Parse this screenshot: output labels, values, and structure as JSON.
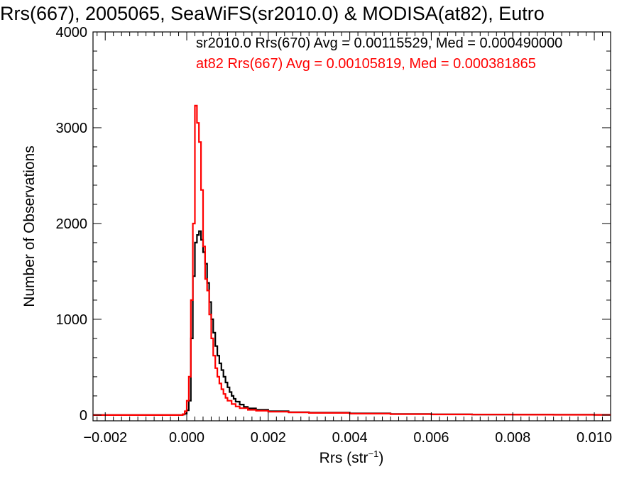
{
  "chart_data": {
    "type": "line",
    "title": "Rrs(667), 2005065, SeaWiFS(sr2010.0) & MODISA(at82), Eutro",
    "xlabel_main": "Rrs (str",
    "xlabel_sup": "−1",
    "xlabel_close": ")",
    "ylabel": "Number of Observations",
    "xlim": [
      -0.0023,
      0.0104
    ],
    "ylim": [
      -60,
      4000
    ],
    "xticks": [
      -0.002,
      0.0,
      0.002,
      0.004,
      0.006,
      0.008,
      0.01
    ],
    "xtick_labels": [
      "−0.002",
      "0.000",
      "0.002",
      "0.004",
      "0.006",
      "0.008",
      "0.010"
    ],
    "yticks": [
      0,
      1000,
      2000,
      3000,
      4000
    ],
    "ytick_labels": [
      "0",
      "1000",
      "2000",
      "3000",
      "4000"
    ],
    "grid": false,
    "series": [
      {
        "name": "sr2010.0 Rrs(670) Avg = 0.00115529, Med = 0.000490000",
        "color": "#000000",
        "points": [
          [
            -0.0023,
            0
          ],
          [
            -0.0002,
            0
          ],
          [
            -0.0001,
            5
          ],
          [
            -5e-05,
            15
          ],
          [
            0.0,
            50
          ],
          [
            5e-05,
            150
          ],
          [
            0.0001,
            800
          ],
          [
            0.00015,
            1450
          ],
          [
            0.0002,
            1800
          ],
          [
            0.00025,
            1880
          ],
          [
            0.0003,
            1920
          ],
          [
            0.00035,
            1830
          ],
          [
            0.0004,
            1700
          ],
          [
            0.00045,
            1580
          ],
          [
            0.0005,
            1380
          ],
          [
            0.00055,
            1180
          ],
          [
            0.0006,
            1000
          ],
          [
            0.00065,
            860
          ],
          [
            0.0007,
            720
          ],
          [
            0.00075,
            620
          ],
          [
            0.0008,
            540
          ],
          [
            0.00085,
            470
          ],
          [
            0.0009,
            400
          ],
          [
            0.00095,
            340
          ],
          [
            0.001,
            290
          ],
          [
            0.00105,
            240
          ],
          [
            0.0011,
            200
          ],
          [
            0.00115,
            170
          ],
          [
            0.0012,
            140
          ],
          [
            0.0013,
            110
          ],
          [
            0.0014,
            85
          ],
          [
            0.0015,
            70
          ],
          [
            0.0017,
            55
          ],
          [
            0.002,
            40
          ],
          [
            0.0025,
            30
          ],
          [
            0.003,
            25
          ],
          [
            0.004,
            18
          ],
          [
            0.005,
            12
          ],
          [
            0.006,
            8
          ],
          [
            0.007,
            6
          ],
          [
            0.008,
            5
          ],
          [
            0.009,
            4
          ],
          [
            0.01,
            3
          ],
          [
            0.0104,
            3
          ]
        ]
      },
      {
        "name": "at82 Rrs(667) Avg = 0.00105819, Med = 0.000381865",
        "color": "#ff0000",
        "points": [
          [
            -0.0023,
            0
          ],
          [
            -0.0002,
            0
          ],
          [
            -0.0001,
            10
          ],
          [
            -5e-05,
            40
          ],
          [
            0.0,
            150
          ],
          [
            5e-05,
            400
          ],
          [
            0.0001,
            1200
          ],
          [
            0.00015,
            2000
          ],
          [
            0.0002,
            3230
          ],
          [
            0.00025,
            3050
          ],
          [
            0.0003,
            2850
          ],
          [
            0.00035,
            2350
          ],
          [
            0.0004,
            1760
          ],
          [
            0.00045,
            1420
          ],
          [
            0.0005,
            1300
          ],
          [
            0.00055,
            1050
          ],
          [
            0.0006,
            800
          ],
          [
            0.00065,
            620
          ],
          [
            0.0007,
            490
          ],
          [
            0.00075,
            400
          ],
          [
            0.0008,
            330
          ],
          [
            0.00085,
            270
          ],
          [
            0.0009,
            220
          ],
          [
            0.00095,
            180
          ],
          [
            0.001,
            150
          ],
          [
            0.0011,
            115
          ],
          [
            0.0012,
            90
          ],
          [
            0.0013,
            72
          ],
          [
            0.0015,
            55
          ],
          [
            0.0017,
            45
          ],
          [
            0.002,
            35
          ],
          [
            0.0025,
            28
          ],
          [
            0.003,
            22
          ],
          [
            0.004,
            15
          ],
          [
            0.005,
            10
          ],
          [
            0.006,
            7
          ],
          [
            0.007,
            5
          ],
          [
            0.008,
            4
          ],
          [
            0.009,
            3
          ],
          [
            0.01,
            2
          ],
          [
            0.0104,
            2
          ]
        ]
      }
    ]
  }
}
